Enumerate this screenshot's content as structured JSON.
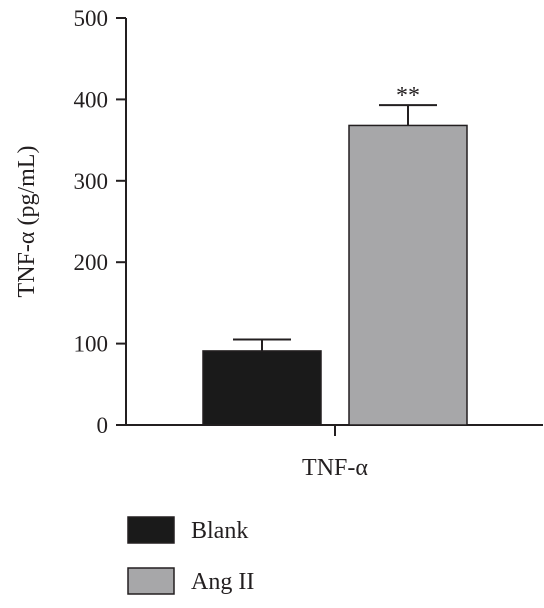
{
  "chart_data": {
    "type": "bar",
    "categories": [
      "TNF-α"
    ],
    "series": [
      {
        "name": "Blank",
        "values": [
          91
        ],
        "error": [
          14
        ],
        "color": "#1a1a1a"
      },
      {
        "name": "Ang II",
        "values": [
          368
        ],
        "error": [
          25
        ],
        "color": "#a7a7a9"
      }
    ],
    "ylabel": "TNF-α (pg/mL)",
    "xlabel": "",
    "ylim": [
      0,
      500
    ],
    "yticks": [
      0,
      100,
      200,
      300,
      400,
      500
    ],
    "annotations": [
      {
        "series": "Ang II",
        "text": "**"
      }
    ],
    "legend": "bottom-left",
    "grid": false
  }
}
